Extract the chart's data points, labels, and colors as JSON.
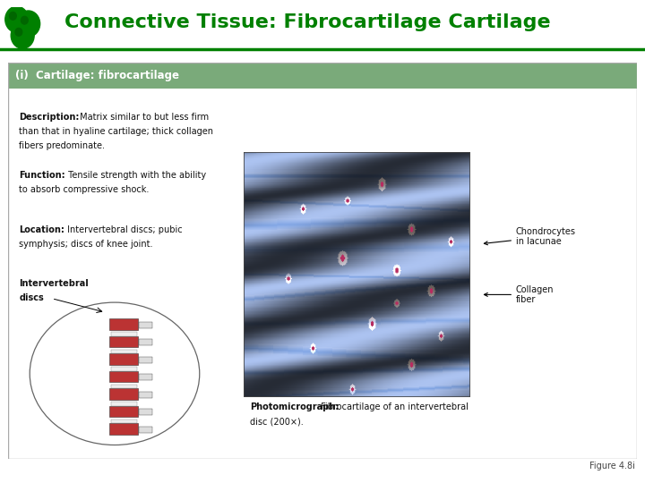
{
  "title": "Connective Tissue: Fibrocartilage Cartilage",
  "title_color": "#008000",
  "title_fontsize": 16,
  "bg_color": "#ffffff",
  "panel_bg": "#ccdccc",
  "panel_header_bg": "#7aaa7a",
  "panel_header_text": "(i)  Cartilage: fibrocartilage",
  "panel_header_color": "#ffffff",
  "panel_header_fontsize": 8.5,
  "desc_bold": "Description:",
  "desc_line1": " Matrix similar to but less firm",
  "desc_line2": "than that in hyaline cartilage; thick collagen",
  "desc_line3": "fibers predominate.",
  "func_bold": "Function:",
  "func_line1": " Tensile strength with the ability",
  "func_line2": "to absorb compressive shock.",
  "loc_bold": "Location:",
  "loc_line1": " Intervertebral discs; pubic",
  "loc_line2": "symphysis; discs of knee joint.",
  "diagram_label1": "Intervertebral",
  "diagram_label2": "discs",
  "photo_bold": "Photomicrograph:",
  "photo_text1": " Fibrocartilage of an intervertebral",
  "photo_text2": "disc (200×).",
  "label_chondro": "Chondrocytes\nin lacunae",
  "label_collagen": "Collagen\nfiber",
  "figure_label": "Figure 4.8i",
  "green_line_color": "#008000",
  "text_color": "#111111",
  "font_size_body": 7.0,
  "font_size_label": 7.0,
  "logo_color": "#008000"
}
